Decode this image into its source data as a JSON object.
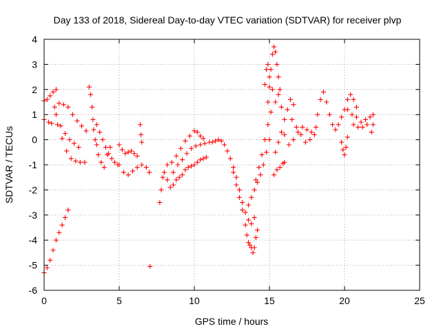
{
  "chart_data": {
    "type": "scatter",
    "title": "Day 133 of 2018, Sidereal Day-to-day VTEC variation (SDTVAR) for receiver plvp",
    "xlabel": "GPS time / hours",
    "ylabel": "SDTVAR / TECUs",
    "xlim": [
      0,
      25
    ],
    "ylim": [
      -6,
      4
    ],
    "xticks": [
      0,
      5,
      10,
      15,
      20,
      25
    ],
    "yticks": [
      -6,
      -5,
      -4,
      -3,
      -2,
      -1,
      0,
      1,
      2,
      3,
      4
    ],
    "grid": true,
    "marker": "+",
    "color": "#ff0000",
    "series": [
      {
        "name": "SDTVAR",
        "points": [
          [
            0.0,
            1.55
          ],
          [
            0.2,
            1.6
          ],
          [
            0.4,
            1.75
          ],
          [
            0.6,
            1.9
          ],
          [
            0.8,
            2.0
          ],
          [
            0.0,
            0.8
          ],
          [
            0.3,
            0.7
          ],
          [
            0.5,
            0.65
          ],
          [
            0.7,
            1.3
          ],
          [
            1.0,
            1.45
          ],
          [
            1.3,
            1.4
          ],
          [
            1.6,
            1.3
          ],
          [
            1.9,
            1.0
          ],
          [
            2.2,
            0.75
          ],
          [
            2.5,
            0.55
          ],
          [
            2.8,
            0.35
          ],
          [
            0.8,
            1.0
          ],
          [
            1.1,
            0.55
          ],
          [
            1.4,
            0.25
          ],
          [
            1.7,
            0.0
          ],
          [
            2.0,
            -0.15
          ],
          [
            2.3,
            -0.3
          ],
          [
            0.9,
            0.6
          ],
          [
            1.2,
            0.05
          ],
          [
            1.5,
            -0.45
          ],
          [
            1.8,
            -0.75
          ],
          [
            2.1,
            -0.85
          ],
          [
            2.4,
            -0.9
          ],
          [
            2.7,
            -0.9
          ],
          [
            0.0,
            -5.3
          ],
          [
            0.2,
            -5.1
          ],
          [
            0.4,
            -4.8
          ],
          [
            0.6,
            -4.4
          ],
          [
            0.8,
            -4.0
          ],
          [
            1.0,
            -3.7
          ],
          [
            1.2,
            -3.4
          ],
          [
            1.4,
            -3.1
          ],
          [
            1.6,
            -2.8
          ],
          [
            3.0,
            2.1
          ],
          [
            3.1,
            1.8
          ],
          [
            3.2,
            1.3
          ],
          [
            3.25,
            0.8
          ],
          [
            3.3,
            0.4
          ],
          [
            3.4,
            0.0
          ],
          [
            3.5,
            -0.2
          ],
          [
            3.5,
            0.6
          ],
          [
            3.7,
            0.3
          ],
          [
            3.9,
            0.0
          ],
          [
            4.1,
            -0.3
          ],
          [
            4.3,
            -0.55
          ],
          [
            4.5,
            -0.75
          ],
          [
            4.7,
            -0.9
          ],
          [
            4.9,
            -1.0
          ],
          [
            3.6,
            -0.6
          ],
          [
            3.8,
            -0.9
          ],
          [
            4.0,
            -1.1
          ],
          [
            4.2,
            -0.6
          ],
          [
            4.4,
            -0.3
          ],
          [
            5.0,
            -0.2
          ],
          [
            5.2,
            -0.4
          ],
          [
            5.4,
            -0.55
          ],
          [
            5.6,
            -0.5
          ],
          [
            5.8,
            -0.45
          ],
          [
            6.0,
            -0.55
          ],
          [
            6.2,
            -0.65
          ],
          [
            5.0,
            -1.0
          ],
          [
            5.3,
            -1.3
          ],
          [
            5.6,
            -1.4
          ],
          [
            5.9,
            -1.25
          ],
          [
            6.2,
            -1.1
          ],
          [
            6.5,
            -1.0
          ],
          [
            6.8,
            -1.1
          ],
          [
            7.0,
            -1.3
          ],
          [
            6.4,
            0.6
          ],
          [
            6.45,
            0.2
          ],
          [
            6.5,
            -0.1
          ],
          [
            7.05,
            -5.05
          ],
          [
            7.7,
            -2.5
          ],
          [
            7.8,
            -2.0
          ],
          [
            7.9,
            -1.5
          ],
          [
            8.0,
            -1.3
          ],
          [
            8.2,
            -1.6
          ],
          [
            8.4,
            -1.9
          ],
          [
            8.6,
            -1.8
          ],
          [
            8.8,
            -1.6
          ],
          [
            9.0,
            -1.5
          ],
          [
            9.2,
            -1.4
          ],
          [
            9.4,
            -1.2
          ],
          [
            9.6,
            -1.1
          ],
          [
            9.8,
            -1.05
          ],
          [
            10.0,
            -1.0
          ],
          [
            10.2,
            -0.9
          ],
          [
            10.4,
            -0.8
          ],
          [
            10.6,
            -0.75
          ],
          [
            10.8,
            -0.7
          ],
          [
            8.2,
            -1.0
          ],
          [
            8.5,
            -0.9
          ],
          [
            8.8,
            -0.65
          ],
          [
            9.1,
            -0.35
          ],
          [
            9.4,
            -0.05
          ],
          [
            9.7,
            0.15
          ],
          [
            10.0,
            0.35
          ],
          [
            10.2,
            0.3
          ],
          [
            10.4,
            0.15
          ],
          [
            10.6,
            0.05
          ],
          [
            8.6,
            -1.3
          ],
          [
            8.9,
            -1.0
          ],
          [
            9.2,
            -0.8
          ],
          [
            9.5,
            -0.55
          ],
          [
            9.8,
            -0.35
          ],
          [
            10.1,
            -0.25
          ],
          [
            10.4,
            -0.2
          ],
          [
            10.7,
            -0.15
          ],
          [
            11.0,
            -0.1
          ],
          [
            11.2,
            -0.1
          ],
          [
            11.4,
            -0.05
          ],
          [
            11.6,
            0.0
          ],
          [
            11.8,
            -0.05
          ],
          [
            12.0,
            -0.2
          ],
          [
            12.2,
            -0.45
          ],
          [
            12.4,
            -0.75
          ],
          [
            12.6,
            -1.1
          ],
          [
            12.8,
            -1.5
          ],
          [
            13.0,
            -2.0
          ],
          [
            13.2,
            -2.5
          ],
          [
            13.4,
            -2.9
          ],
          [
            13.6,
            -3.2
          ],
          [
            13.8,
            -3.35
          ],
          [
            14.0,
            -3.1
          ],
          [
            12.6,
            -1.3
          ],
          [
            12.8,
            -1.8
          ],
          [
            13.0,
            -2.3
          ],
          [
            13.2,
            -2.8
          ],
          [
            13.4,
            -3.4
          ],
          [
            13.5,
            -3.8
          ],
          [
            13.6,
            -4.1
          ],
          [
            13.7,
            -4.2
          ],
          [
            13.8,
            -4.3
          ],
          [
            13.9,
            -4.5
          ],
          [
            14.0,
            -4.3
          ],
          [
            14.1,
            -3.9
          ],
          [
            14.2,
            -3.6
          ],
          [
            13.6,
            -2.6
          ],
          [
            13.8,
            -2.3
          ],
          [
            14.0,
            -2.0
          ],
          [
            14.2,
            -1.7
          ],
          [
            14.4,
            -1.4
          ],
          [
            14.6,
            -1.0
          ],
          [
            14.8,
            -0.5
          ],
          [
            15.0,
            0.0
          ],
          [
            14.1,
            -1.6
          ],
          [
            14.3,
            -1.1
          ],
          [
            14.5,
            -0.6
          ],
          [
            14.7,
            0.0
          ],
          [
            14.9,
            0.6
          ],
          [
            15.1,
            1.1
          ],
          [
            14.9,
            1.5
          ],
          [
            15.0,
            2.1
          ],
          [
            15.1,
            2.8
          ],
          [
            15.2,
            3.4
          ],
          [
            15.3,
            3.7
          ],
          [
            15.4,
            3.5
          ],
          [
            15.5,
            3.0
          ],
          [
            15.6,
            2.5
          ],
          [
            15.7,
            2.0
          ],
          [
            14.7,
            2.2
          ],
          [
            14.8,
            2.8
          ],
          [
            14.9,
            3.0
          ],
          [
            15.0,
            2.5
          ],
          [
            15.2,
            2.0
          ],
          [
            15.4,
            1.5
          ],
          [
            15.6,
            1.8
          ],
          [
            15.8,
            1.3
          ],
          [
            15.3,
            -1.4
          ],
          [
            15.5,
            -1.2
          ],
          [
            15.7,
            -1.1
          ],
          [
            15.9,
            -0.95
          ],
          [
            16.0,
            -0.9
          ],
          [
            15.4,
            -0.5
          ],
          [
            15.6,
            -0.1
          ],
          [
            15.8,
            0.3
          ],
          [
            16.0,
            0.8
          ],
          [
            16.2,
            1.2
          ],
          [
            16.4,
            1.6
          ],
          [
            16.6,
            1.4
          ],
          [
            16.0,
            0.2
          ],
          [
            16.3,
            -0.2
          ],
          [
            16.6,
            0.0
          ],
          [
            16.9,
            0.3
          ],
          [
            17.2,
            0.5
          ],
          [
            17.5,
            0.4
          ],
          [
            17.8,
            0.3
          ],
          [
            18.1,
            0.5
          ],
          [
            16.5,
            0.8
          ],
          [
            16.8,
            0.5
          ],
          [
            17.1,
            0.2
          ],
          [
            17.4,
            -0.1
          ],
          [
            17.7,
            0.0
          ],
          [
            18.0,
            0.2
          ],
          [
            18.2,
            1.0
          ],
          [
            18.4,
            1.6
          ],
          [
            18.6,
            1.9
          ],
          [
            18.8,
            1.5
          ],
          [
            19.0,
            1.0
          ],
          [
            19.2,
            0.6
          ],
          [
            19.4,
            0.4
          ],
          [
            19.6,
            0.6
          ],
          [
            19.8,
            0.9
          ],
          [
            20.0,
            1.2
          ],
          [
            20.2,
            1.6
          ],
          [
            20.4,
            1.8
          ],
          [
            20.6,
            1.6
          ],
          [
            20.8,
            1.3
          ],
          [
            19.8,
            -0.1
          ],
          [
            19.9,
            -0.4
          ],
          [
            20.0,
            -0.6
          ],
          [
            20.1,
            -0.3
          ],
          [
            20.2,
            0.1
          ],
          [
            20.2,
            1.2
          ],
          [
            20.5,
            1.0
          ],
          [
            20.8,
            0.9
          ],
          [
            21.1,
            0.7
          ],
          [
            21.4,
            0.8
          ],
          [
            21.7,
            0.9
          ],
          [
            21.9,
            1.0
          ],
          [
            20.6,
            0.6
          ],
          [
            20.9,
            0.5
          ],
          [
            21.2,
            0.5
          ],
          [
            21.5,
            0.6
          ],
          [
            21.8,
            0.3
          ],
          [
            21.9,
            0.6
          ]
        ]
      }
    ]
  }
}
